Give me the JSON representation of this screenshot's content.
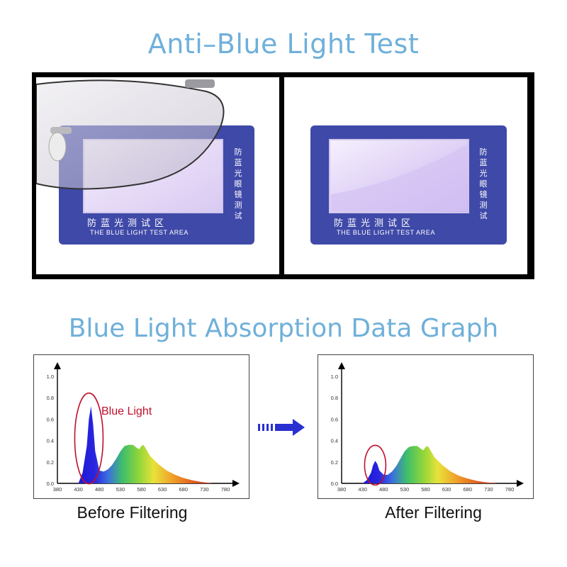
{
  "headings": {
    "test_title": "Anti–Blue Light Test",
    "graph_title": "Blue Light Absorption Data Graph"
  },
  "test_card": {
    "vertical_text": "防蓝光眼镜测试",
    "chinese_text": "防蓝光测试区",
    "english_text": "THE BLUE LIGHT TEST AREA"
  },
  "colors": {
    "heading": "#6fb0da",
    "card": "#3f49a8",
    "annotation": "#c0102a",
    "arrow": "#2a2fd0"
  },
  "chart_data": [
    {
      "type": "area",
      "x_ticks": [
        380,
        430,
        480,
        530,
        580,
        630,
        680,
        730,
        780
      ],
      "y_ticks": [
        0.0,
        0.2,
        0.4,
        0.6,
        0.8,
        1.0
      ],
      "xlim": [
        380,
        780
      ],
      "ylim": [
        0,
        1.0
      ],
      "series": [
        {
          "x": [
            430,
            440,
            450,
            455,
            460,
            465,
            470,
            480,
            490,
            500,
            510,
            520,
            530,
            540,
            550,
            560,
            570,
            575,
            580,
            585,
            590,
            600,
            620,
            640,
            660,
            680,
            700,
            720,
            740,
            750
          ],
          "values": [
            0.0,
            0.1,
            0.35,
            0.6,
            0.72,
            0.55,
            0.3,
            0.12,
            0.11,
            0.13,
            0.17,
            0.23,
            0.3,
            0.35,
            0.36,
            0.36,
            0.33,
            0.32,
            0.35,
            0.36,
            0.33,
            0.26,
            0.18,
            0.12,
            0.08,
            0.05,
            0.03,
            0.015,
            0.005,
            0.0
          ]
        }
      ],
      "annotation": "Blue Light",
      "caption": "Before Filtering"
    },
    {
      "type": "area",
      "x_ticks": [
        380,
        430,
        480,
        530,
        580,
        630,
        680,
        730,
        780
      ],
      "y_ticks": [
        0.0,
        0.2,
        0.4,
        0.6,
        0.8,
        1.0
      ],
      "xlim": [
        380,
        780
      ],
      "ylim": [
        0,
        1.0
      ],
      "series": [
        {
          "x": [
            430,
            440,
            450,
            455,
            460,
            465,
            470,
            480,
            490,
            500,
            510,
            520,
            530,
            540,
            550,
            560,
            570,
            575,
            580,
            585,
            590,
            600,
            620,
            640,
            660,
            680,
            700,
            720,
            740,
            750
          ],
          "values": [
            0.0,
            0.03,
            0.1,
            0.17,
            0.21,
            0.18,
            0.12,
            0.08,
            0.08,
            0.11,
            0.16,
            0.23,
            0.3,
            0.34,
            0.35,
            0.35,
            0.32,
            0.31,
            0.34,
            0.35,
            0.32,
            0.25,
            0.17,
            0.11,
            0.07,
            0.045,
            0.025,
            0.012,
            0.004,
            0.0
          ]
        }
      ],
      "caption": "After Filtering"
    }
  ]
}
